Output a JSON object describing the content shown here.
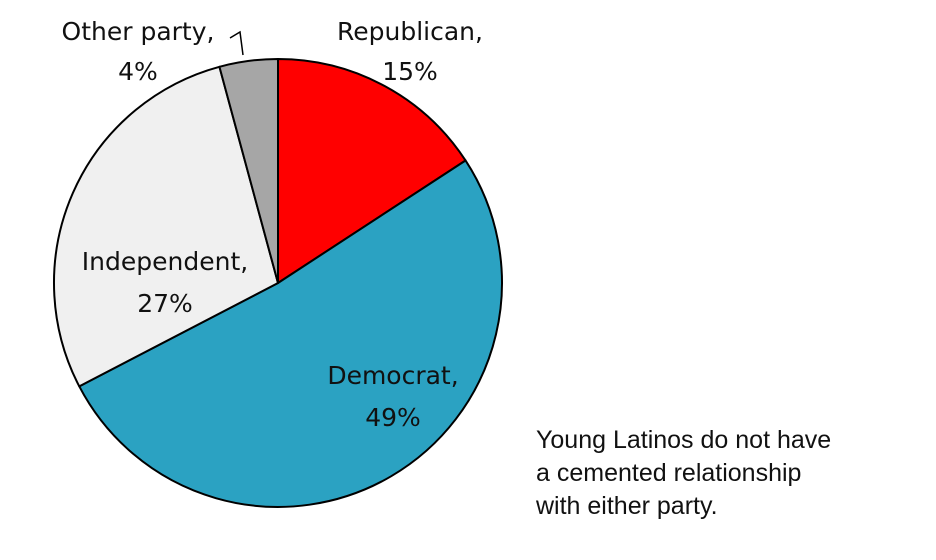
{
  "chart_data": {
    "type": "pie",
    "slices": [
      {
        "label": "Republican,",
        "value": 15,
        "value_label": "15%",
        "color": "#ff0000"
      },
      {
        "label": "Democrat,",
        "value": 49,
        "value_label": "49%",
        "color": "#2ba2c2"
      },
      {
        "label": "Independent,",
        "value": 27,
        "value_label": "27%",
        "color": "#f0f0f0"
      },
      {
        "label": "Other party,",
        "value": 4,
        "value_label": "4%",
        "color": "#a6a6a6"
      }
    ],
    "start_angle_deg": 0,
    "direction": "clockwise",
    "outline_color": "#000000"
  },
  "annotation": {
    "lines": [
      "Young Latinos do not have",
      "a cemented relationship",
      "with either party."
    ]
  }
}
